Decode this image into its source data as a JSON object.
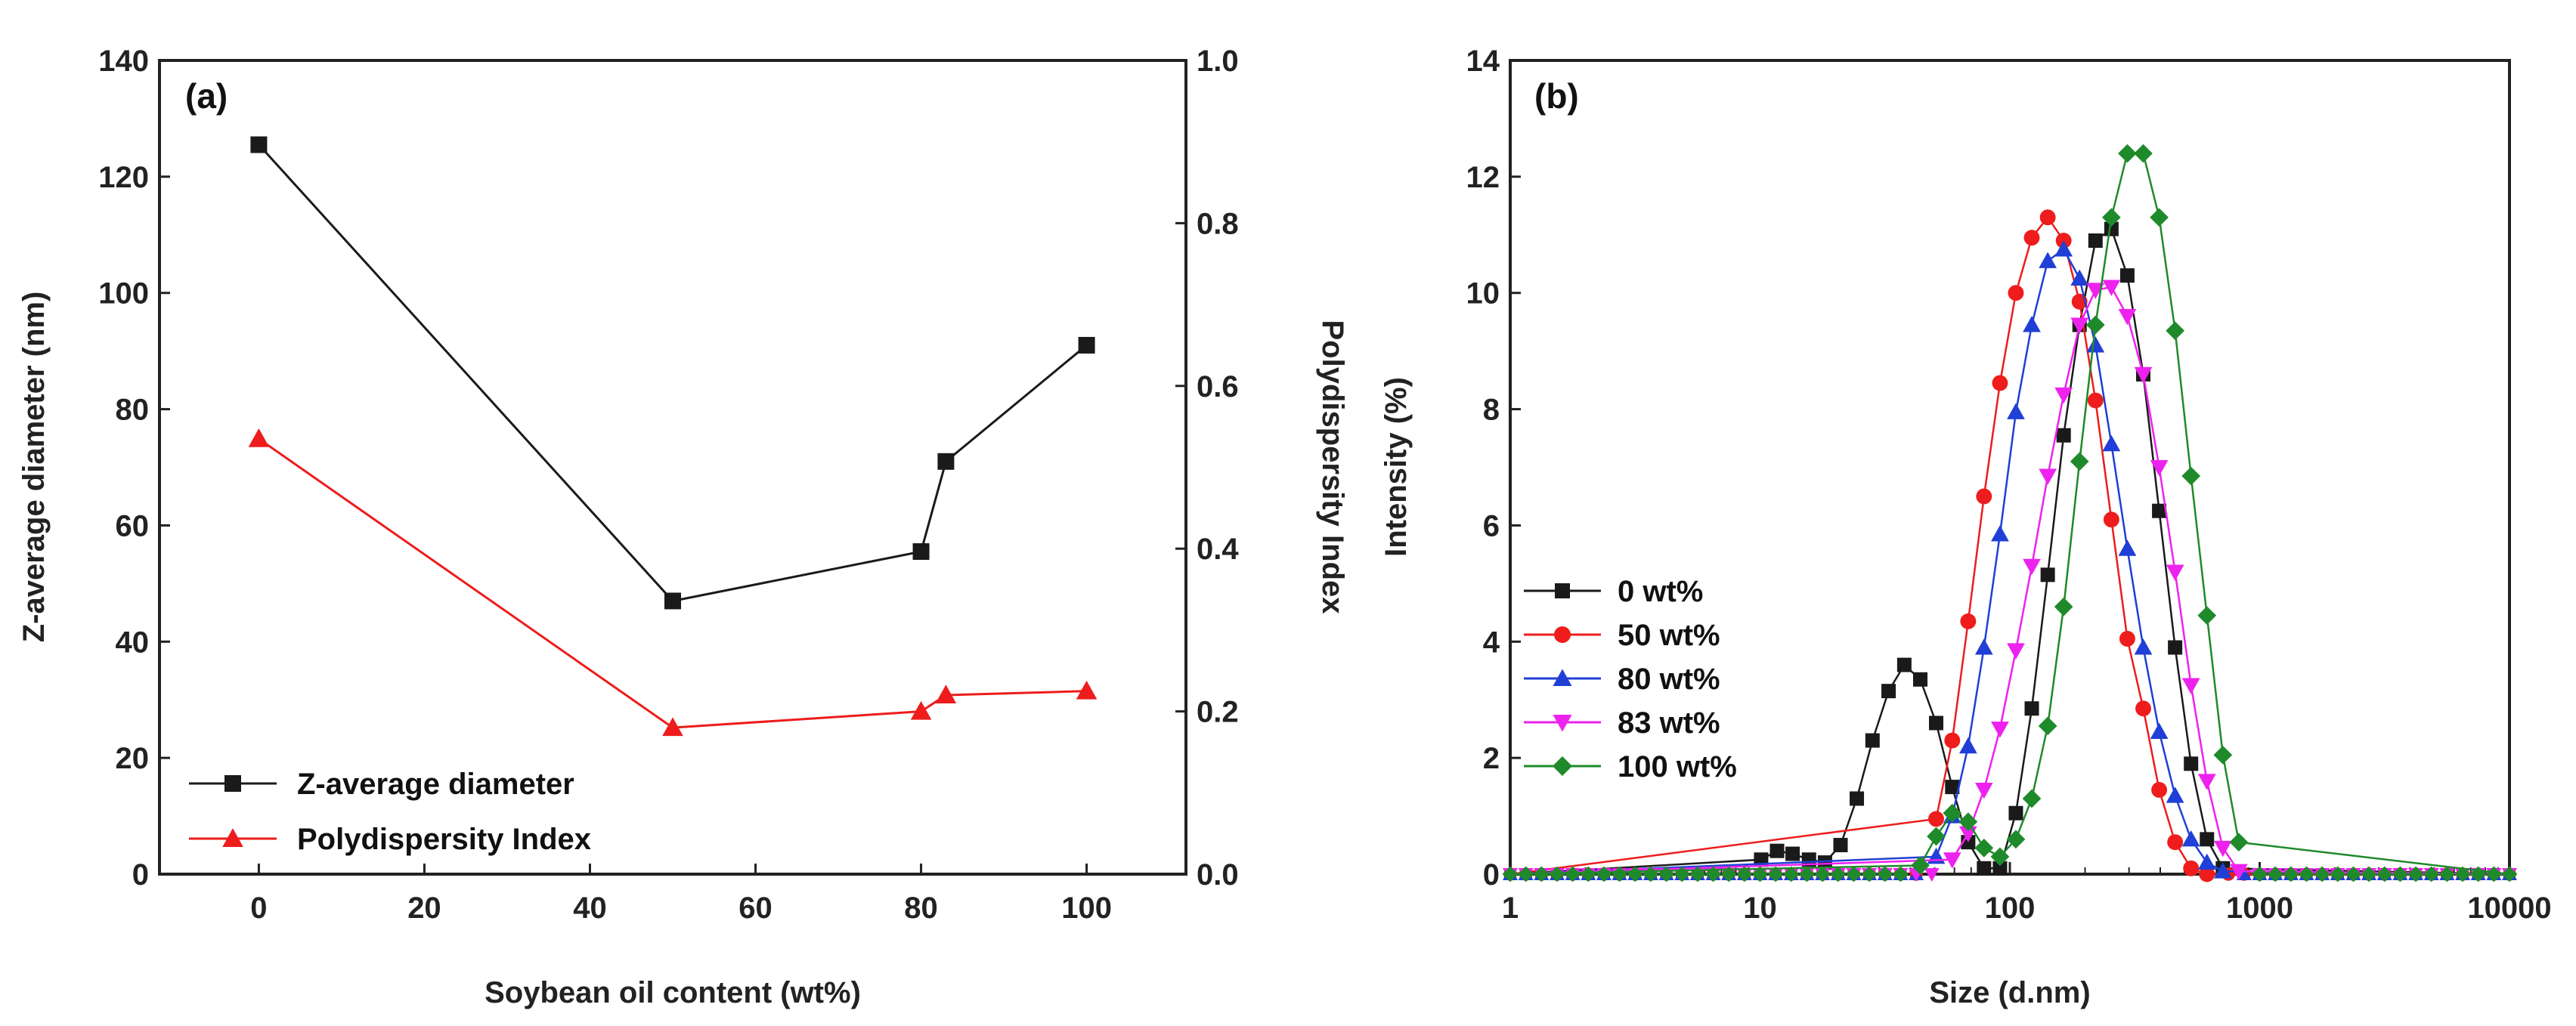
{
  "chart_data": [
    {
      "id": "a",
      "type": "line",
      "panel_label": "(a)",
      "xlabel": "Soybean oil content (wt%)",
      "ylabel": "Z-average diameter (nm)",
      "y2label": "Polydispersity Index",
      "xlim": [
        -12,
        112
      ],
      "ylim": [
        0,
        140
      ],
      "y2lim": [
        0,
        1.0
      ],
      "xticks": [
        0,
        20,
        40,
        60,
        80,
        100
      ],
      "xtick_labels": [
        "0",
        "20",
        "40",
        "60",
        "80",
        "100"
      ],
      "yticks": [
        0,
        20,
        40,
        60,
        80,
        100,
        120,
        140
      ],
      "ytick_labels": [
        "0",
        "20",
        "40",
        "60",
        "80",
        "100",
        "120",
        "140"
      ],
      "y2ticks": [
        0,
        0.2,
        0.4,
        0.6,
        0.8,
        1.0
      ],
      "y2tick_labels": [
        "0.0",
        "0.2",
        "0.4",
        "0.6",
        "0.8",
        "1.0"
      ],
      "legend_position": "bottom-left",
      "series": [
        {
          "name": "Z-average diameter",
          "axis": "left",
          "color": "#1a1a1a",
          "marker": "square",
          "x": [
            0,
            50,
            80,
            83,
            100
          ],
          "values": [
            125.5,
            47,
            55.5,
            71,
            91
          ]
        },
        {
          "name": "Polydispersity Index",
          "axis": "right",
          "color": "#ee1c1c",
          "marker": "triangle-up",
          "x": [
            0,
            50,
            80,
            83,
            100
          ],
          "values": [
            0.535,
            0.18,
            0.2,
            0.22,
            0.225
          ]
        }
      ]
    },
    {
      "id": "b",
      "type": "line",
      "panel_label": "(b)",
      "xscale": "log",
      "xlabel": "Size (d.nm)",
      "ylabel": "Intensity (%)",
      "xlim": [
        1,
        10000
      ],
      "ylim": [
        0,
        14
      ],
      "xticks": [
        1,
        10,
        100,
        1000,
        10000
      ],
      "xtick_labels": [
        "1",
        "10",
        "100",
        "1000",
        "10000"
      ],
      "yticks": [
        0,
        2,
        4,
        6,
        8,
        10,
        12,
        14
      ],
      "ytick_labels": [
        "0",
        "2",
        "4",
        "6",
        "8",
        "10",
        "12",
        "14"
      ],
      "legend_position": "center-left",
      "series": [
        {
          "name": "0 wt%",
          "color": "#1a1a1a",
          "marker": "square",
          "x": [
            10.1,
            11.7,
            13.5,
            15.7,
            18.2,
            21.0,
            24.4,
            28.2,
            32.7,
            37.8,
            43.8,
            50.7,
            58.8,
            68.1,
            78.8,
            91.3,
            105.7,
            122.4,
            141.8,
            164.2,
            190.1,
            220.2,
            255.0,
            295.3,
            342.0,
            396.1,
            458.7,
            531.2,
            615.1,
            712.4
          ],
          "values": [
            0.25,
            0.4,
            0.35,
            0.25,
            0.2,
            0.5,
            1.3,
            2.3,
            3.15,
            3.6,
            3.35,
            2.6,
            1.5,
            0.55,
            0.1,
            0.1,
            1.05,
            2.85,
            5.15,
            7.55,
            9.45,
            10.9,
            11.1,
            10.3,
            8.6,
            6.25,
            3.9,
            1.9,
            0.6,
            0.1
          ]
        },
        {
          "name": "50 wt%",
          "color": "#ee1c1c",
          "marker": "circle",
          "x": [
            50.7,
            58.8,
            68.1,
            78.8,
            91.3,
            105.7,
            122.4,
            141.8,
            164.2,
            190.1,
            220.2,
            255.0,
            295.3,
            342.0,
            396.1,
            458.7,
            531.2,
            615.1
          ],
          "values": [
            0.95,
            2.3,
            4.35,
            6.5,
            8.45,
            10.0,
            10.95,
            11.3,
            10.9,
            9.85,
            8.15,
            6.1,
            4.05,
            2.85,
            1.45,
            0.55,
            0.1,
            0.0
          ]
        },
        {
          "name": "80 wt%",
          "color": "#1f3fd6",
          "marker": "triangle-up",
          "x": [
            50.7,
            58.8,
            68.1,
            78.8,
            91.3,
            105.7,
            122.4,
            141.8,
            164.2,
            190.1,
            220.2,
            255.0,
            295.3,
            342.0,
            396.1,
            458.7,
            531.2,
            615.1,
            712.4
          ],
          "values": [
            0.3,
            1.0,
            2.2,
            3.9,
            5.85,
            7.95,
            9.45,
            10.55,
            10.75,
            10.25,
            9.1,
            7.4,
            5.6,
            3.9,
            2.45,
            1.35,
            0.6,
            0.2,
            0.05
          ]
        },
        {
          "name": "83 wt%",
          "color": "#ee22ee",
          "marker": "triangle-down",
          "x": [
            58.8,
            68.1,
            78.8,
            91.3,
            105.7,
            122.4,
            141.8,
            164.2,
            190.1,
            220.2,
            255.0,
            295.3,
            342.0,
            396.1,
            458.7,
            531.2,
            615.1,
            712.4,
            825.0
          ],
          "values": [
            0.25,
            0.7,
            1.45,
            2.5,
            3.85,
            5.3,
            6.85,
            8.25,
            9.45,
            10.05,
            10.1,
            9.6,
            8.6,
            7.0,
            5.2,
            3.25,
            1.6,
            0.45,
            0.05
          ]
        },
        {
          "name": "100 wt%",
          "color": "#1f8a2a",
          "marker": "diamond",
          "x": [
            43.8,
            50.7,
            58.8,
            68.1,
            78.8,
            91.3,
            105.7,
            122.4,
            141.8,
            164.2,
            190.1,
            220.2,
            255.0,
            295.3,
            342.0,
            396.1,
            458.7,
            531.2,
            615.1,
            712.4,
            825.0
          ],
          "values": [
            0.15,
            0.65,
            1.05,
            0.9,
            0.45,
            0.3,
            0.6,
            1.3,
            2.55,
            4.6,
            7.1,
            9.45,
            11.3,
            12.4,
            12.4,
            11.3,
            9.35,
            6.85,
            4.45,
            2.05,
            0.55
          ]
        }
      ]
    }
  ]
}
